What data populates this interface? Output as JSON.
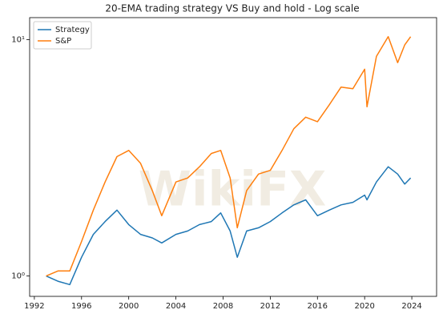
{
  "chart_data": {
    "type": "line",
    "title": "20-EMA trading strategy VS Buy and hold - Log scale",
    "watermark": "WikiFX",
    "x": [
      1993,
      1994,
      1995,
      1996,
      1997,
      1998,
      1999,
      2000,
      2001,
      2002,
      2002.8,
      2004,
      2005,
      2006,
      2007,
      2007.8,
      2008.6,
      2009.2,
      2010,
      2011,
      2012,
      2013,
      2014,
      2015,
      2016,
      2017,
      2018,
      2019,
      2020,
      2020.2,
      2021,
      2022,
      2022.8,
      2023.4,
      2023.9
    ],
    "series": [
      {
        "name": "Strategy",
        "color": "#1f77b4",
        "values": [
          1.0,
          0.95,
          0.92,
          1.2,
          1.5,
          1.7,
          1.9,
          1.65,
          1.5,
          1.45,
          1.38,
          1.5,
          1.55,
          1.65,
          1.7,
          1.85,
          1.55,
          1.2,
          1.55,
          1.6,
          1.7,
          1.85,
          2.0,
          2.1,
          1.8,
          1.9,
          2.0,
          2.05,
          2.2,
          2.1,
          2.5,
          2.9,
          2.7,
          2.45,
          2.6
        ]
      },
      {
        "name": "S&P",
        "color": "#ff7f0e",
        "values": [
          1.0,
          1.05,
          1.05,
          1.4,
          1.9,
          2.5,
          3.2,
          3.4,
          3.0,
          2.3,
          1.8,
          2.5,
          2.6,
          2.9,
          3.3,
          3.4,
          2.6,
          1.6,
          2.3,
          2.7,
          2.8,
          3.4,
          4.2,
          4.7,
          4.5,
          5.3,
          6.3,
          6.2,
          7.5,
          5.2,
          8.5,
          10.3,
          8.0,
          9.5,
          10.3
        ]
      }
    ],
    "xlim": [
      1991.6,
      2026.1
    ],
    "xticks": [
      1992,
      1996,
      2000,
      2004,
      2008,
      2012,
      2016,
      2020,
      2024
    ],
    "ylim": [
      0.82,
      12.4
    ],
    "yticks": [
      {
        "value": 1,
        "label": "10⁰"
      },
      {
        "value": 10,
        "label": "10¹"
      }
    ],
    "log_y": true,
    "legend": "upper-left"
  }
}
